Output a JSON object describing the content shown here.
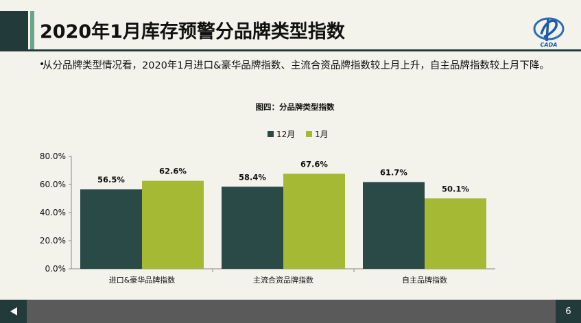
{
  "title": "2020年1月库存预警分品牌类型指数",
  "body": {
    "bullet": "•",
    "text": "从分品牌类型情况看，2020年1月进口&豪华品牌指数、主流合资品牌指数较上月上升，自主品牌指数较上月下降。"
  },
  "logo": {
    "icon": "cada-logo-icon",
    "text": "CADA"
  },
  "footer": {
    "page_number": "6",
    "prev_icon": "left-triangle-icon"
  },
  "colors": {
    "dark": "#2a4a48",
    "green": "#a6b935",
    "accent": "#6aa48a"
  },
  "chart_data": {
    "type": "bar",
    "title": "图四：分品牌类型指数",
    "categories": [
      "进口&豪华品牌指数",
      "主流合资品牌指数",
      "自主品牌指数"
    ],
    "series": [
      {
        "name": "12月",
        "values": [
          56.5,
          58.4,
          61.7
        ],
        "color": "#2a4a48",
        "labels": [
          "56.5%",
          "58.4%",
          "61.7%"
        ]
      },
      {
        "name": "1月",
        "values": [
          62.6,
          67.6,
          50.1
        ],
        "color": "#a6b935",
        "labels": [
          "62.6%",
          "67.6%",
          "50.1%"
        ]
      }
    ],
    "yticks": [
      "0.0%",
      "20.0%",
      "40.0%",
      "60.0%",
      "80.0%"
    ],
    "ylim": [
      0,
      80
    ],
    "legend_position": "top",
    "grid": false
  }
}
